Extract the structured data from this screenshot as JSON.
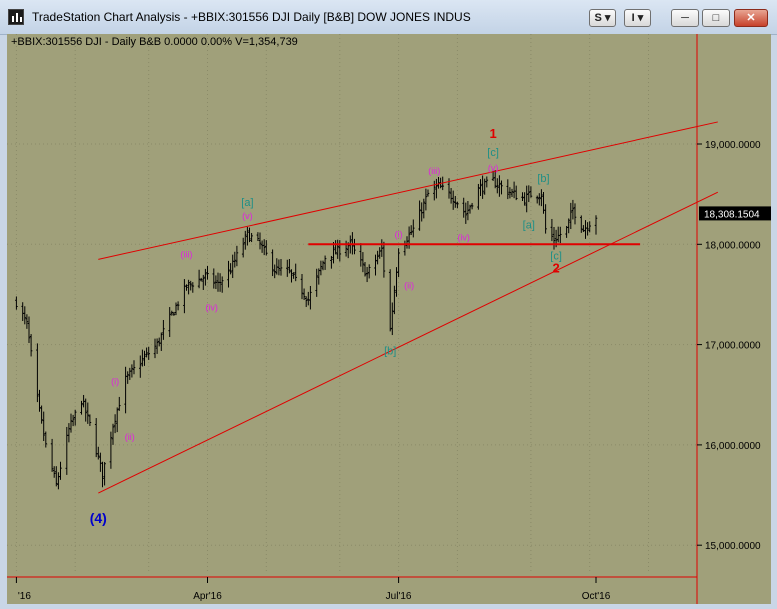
{
  "window": {
    "title": "TradeStation Chart Analysis - +BBIX:301556 DJI Daily [B&B] DOW JONES INDUS",
    "buttons": {
      "symbol_sync": "S",
      "interval_sync": "I",
      "minimize": "─",
      "maximize": "□",
      "close": "✕"
    }
  },
  "status_line": "+BBIX:301556 DJI - Daily  B&B  0.0000  0.00%  V=1,354,739",
  "colors": {
    "background": "#a0a07a",
    "bars": "#000000",
    "trendline": "#e00000",
    "wave_minor": "#e020e0",
    "wave_intermediate": "#1f8f86",
    "wave_primary": "#0000cc"
  },
  "chart_data": {
    "type": "ohlc",
    "title": "",
    "price_axis": {
      "ticks": [
        "19,000.0000",
        "18,000.0000",
        "17,000.0000",
        "16,000.0000",
        "15,000.0000"
      ],
      "range": [
        14700,
        20300
      ]
    },
    "last_price": "18,308.1504",
    "time_axis": {
      "ticks": [
        "'16",
        "Apr'16",
        "Jul'16",
        "Oct'16"
      ]
    },
    "grid": true,
    "anchors": [
      [
        "2016-01-01",
        17425
      ],
      [
        "2016-01-06",
        17200
      ],
      [
        "2016-01-11",
        16450
      ],
      [
        "2016-01-15",
        15990
      ],
      [
        "2016-01-20",
        15600
      ],
      [
        "2016-01-26",
        16150
      ],
      [
        "2016-02-01",
        16450
      ],
      [
        "2016-02-05",
        16200
      ],
      [
        "2016-02-11",
        15700
      ],
      [
        "2016-02-16",
        16200
      ],
      [
        "2016-02-22",
        16650
      ],
      [
        "2016-03-01",
        16850
      ],
      [
        "2016-03-08",
        17000
      ],
      [
        "2016-03-15",
        17300
      ],
      [
        "2016-03-22",
        17580
      ],
      [
        "2016-03-31",
        17680
      ],
      [
        "2016-04-06",
        17600
      ],
      [
        "2016-04-12",
        17750
      ],
      [
        "2016-04-20",
        18100
      ],
      [
        "2016-04-26",
        18000
      ],
      [
        "2016-05-03",
        17750
      ],
      [
        "2016-05-10",
        17720
      ],
      [
        "2016-05-19",
        17450
      ],
      [
        "2016-05-27",
        17870
      ],
      [
        "2016-06-08",
        18000
      ],
      [
        "2016-06-16",
        17700
      ],
      [
        "2016-06-23",
        17950
      ],
      [
        "2016-06-27",
        17150
      ],
      [
        "2016-07-01",
        17950
      ],
      [
        "2016-07-08",
        18150
      ],
      [
        "2016-07-15",
        18500
      ],
      [
        "2016-07-20",
        18580
      ],
      [
        "2016-07-28",
        18450
      ],
      [
        "2016-08-02",
        18300
      ],
      [
        "2016-08-08",
        18550
      ],
      [
        "2016-08-15",
        18630
      ],
      [
        "2016-08-22",
        18530
      ],
      [
        "2016-08-30",
        18450
      ],
      [
        "2016-09-02",
        18500
      ],
      [
        "2016-09-07",
        18500
      ],
      [
        "2016-09-09",
        18150
      ],
      [
        "2016-09-13",
        18050
      ],
      [
        "2016-09-19",
        18150
      ],
      [
        "2016-09-22",
        18350
      ],
      [
        "2016-09-27",
        18150
      ],
      [
        "2016-10-03",
        18280
      ]
    ],
    "trendlines": [
      {
        "name": "upper-channel",
        "from": [
          "2016-02-09",
          17850
        ],
        "to": [
          "2016-11-30",
          19220
        ]
      },
      {
        "name": "lower-trendline",
        "from": [
          "2016-02-09",
          15520
        ],
        "to": [
          "2016-11-30",
          18520
        ]
      },
      {
        "name": "horizontal-support",
        "from": [
          "2016-05-19",
          18000
        ],
        "to": [
          "2016-10-24",
          18000
        ]
      }
    ],
    "annotations": [
      {
        "label": "(4)",
        "date": "2016-02-09",
        "price": 15220,
        "style": "primary"
      },
      {
        "label": "(i)",
        "date": "2016-02-17",
        "price": 16600,
        "style": "minor"
      },
      {
        "label": "(ii)",
        "date": "2016-02-24",
        "price": 16050,
        "style": "minor"
      },
      {
        "label": "(iii)",
        "date": "2016-03-22",
        "price": 17870,
        "style": "minor"
      },
      {
        "label": "(iv)",
        "date": "2016-04-03",
        "price": 17340,
        "style": "minor"
      },
      {
        "label": "(v)",
        "date": "2016-04-20",
        "price": 18250,
        "style": "minor"
      },
      {
        "label": "[a]",
        "date": "2016-04-20",
        "price": 18380,
        "style": "intermediate"
      },
      {
        "label": "[b]",
        "date": "2016-06-27",
        "price": 16900,
        "style": "intermediate"
      },
      {
        "label": "(i)",
        "date": "2016-07-01",
        "price": 18070,
        "style": "minor"
      },
      {
        "label": "(ii)",
        "date": "2016-07-06",
        "price": 17560,
        "style": "minor"
      },
      {
        "label": "(iii)",
        "date": "2016-07-18",
        "price": 18700,
        "style": "minor"
      },
      {
        "label": "(iv)",
        "date": "2016-08-01",
        "price": 18040,
        "style": "minor"
      },
      {
        "label": "(v)",
        "date": "2016-08-15",
        "price": 18730,
        "style": "minor"
      },
      {
        "label": "[c]",
        "date": "2016-08-15",
        "price": 18880,
        "style": "intermediate"
      },
      {
        "label": "1",
        "date": "2016-08-15",
        "price": 19060,
        "style": "primary-red"
      },
      {
        "label": "[b]",
        "date": "2016-09-08",
        "price": 18620,
        "style": "intermediate"
      },
      {
        "label": "[a]",
        "date": "2016-09-01",
        "price": 18160,
        "style": "intermediate"
      },
      {
        "label": "[c]",
        "date": "2016-09-14",
        "price": 17850,
        "style": "intermediate"
      },
      {
        "label": "2",
        "date": "2016-09-14",
        "price": 17720,
        "style": "primary-red"
      }
    ]
  }
}
